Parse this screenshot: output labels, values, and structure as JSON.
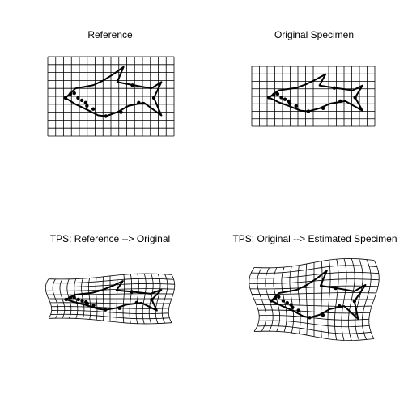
{
  "window": {
    "background": "#ffffff",
    "ink": "#000000"
  },
  "panels": [
    {
      "id": "reference",
      "title": "Reference"
    },
    {
      "id": "original-specimen",
      "title": "Original Specimen"
    },
    {
      "id": "tps-reference-to-original",
      "title": "TPS: Reference --> Original"
    },
    {
      "id": "tps-original-to-estimated",
      "title": "TPS: Original --> Estimated Specimen"
    }
  ]
}
